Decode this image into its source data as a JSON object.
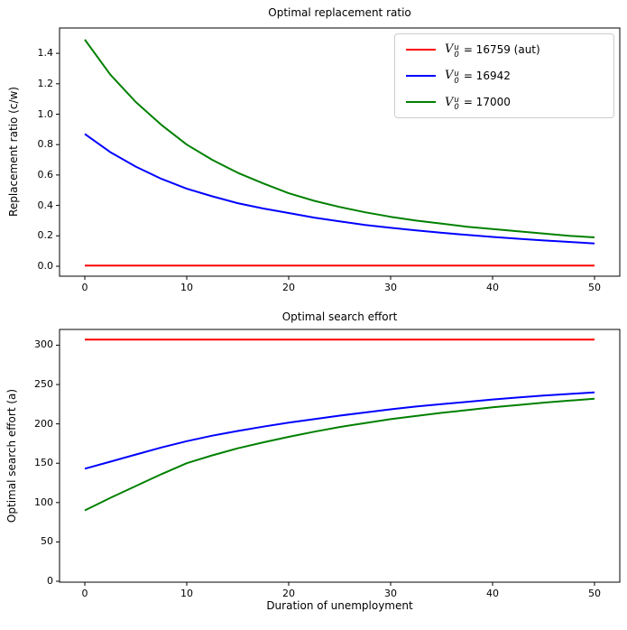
{
  "figure_background": "#ffffff",
  "axis_color": "#000000",
  "legend": {
    "entries": [
      {
        "color": "#ff0000",
        "var": "V",
        "sup": "u",
        "sub": "0",
        "rest": "= 16759 (aut)"
      },
      {
        "color": "#0000ff",
        "var": "V",
        "sup": "u",
        "sub": "0",
        "rest": "= 16942"
      },
      {
        "color": "#008000",
        "var": "V",
        "sup": "u",
        "sub": "0",
        "rest": "= 17000"
      }
    ]
  },
  "chart_data": [
    {
      "type": "line",
      "title": "Optimal replacement ratio",
      "xlabel": "",
      "ylabel": "Replacement ratio (c/w)",
      "grid": false,
      "legend_position": "upper right",
      "xlim": [
        -2.48,
        52.48
      ],
      "ylim": [
        -0.0653,
        1.5668
      ],
      "xticks": [
        0,
        10,
        20,
        30,
        40,
        50
      ],
      "xtick_labels": [
        "0",
        "10",
        "20",
        "30",
        "40",
        "50"
      ],
      "yticks": [
        0.0,
        0.2,
        0.4,
        0.6,
        0.8,
        1.0,
        1.2,
        1.4
      ],
      "ytick_labels": [
        "0.0",
        "0.2",
        "0.4",
        "0.6",
        "0.8",
        "1.0",
        "1.2",
        "1.4"
      ],
      "x": [
        0,
        2.5,
        5,
        7.5,
        10,
        12.5,
        15,
        17.5,
        20,
        22.5,
        25,
        27.5,
        30,
        32.5,
        35,
        37.5,
        40,
        42.5,
        45,
        47.5,
        50
      ],
      "series": [
        {
          "name": "V_0^u = 16759 (aut)",
          "color": "#ff0000",
          "values": [
            0.005,
            0.005,
            0.005,
            0.005,
            0.005,
            0.005,
            0.005,
            0.005,
            0.005,
            0.005,
            0.005,
            0.005,
            0.005,
            0.005,
            0.005,
            0.005,
            0.005,
            0.005,
            0.005,
            0.005,
            0.005
          ]
        },
        {
          "name": "V_0^u = 16942",
          "color": "#0000ff",
          "values": [
            0.87,
            0.75,
            0.655,
            0.575,
            0.51,
            0.46,
            0.415,
            0.38,
            0.35,
            0.32,
            0.295,
            0.272,
            0.253,
            0.236,
            0.22,
            0.206,
            0.193,
            0.181,
            0.17,
            0.16,
            0.15
          ]
        },
        {
          "name": "V_0^u = 17000",
          "color": "#008000",
          "values": [
            1.49,
            1.26,
            1.08,
            0.93,
            0.8,
            0.7,
            0.615,
            0.545,
            0.48,
            0.43,
            0.39,
            0.355,
            0.325,
            0.3,
            0.28,
            0.26,
            0.245,
            0.23,
            0.215,
            0.2,
            0.19
          ]
        }
      ]
    },
    {
      "type": "line",
      "title": "Optimal search effort",
      "xlabel": "Duration of unemployment",
      "ylabel": "Optimal search effort (a)",
      "grid": false,
      "legend_position": "none",
      "xlim": [
        -2.48,
        52.48
      ],
      "ylim": [
        -1.15,
        320
      ],
      "xticks": [
        0,
        10,
        20,
        30,
        40,
        50
      ],
      "xtick_labels": [
        "0",
        "10",
        "20",
        "30",
        "40",
        "50"
      ],
      "yticks": [
        0,
        50,
        100,
        150,
        200,
        250,
        300
      ],
      "ytick_labels": [
        "0",
        "50",
        "100",
        "150",
        "200",
        "250",
        "300"
      ],
      "x": [
        0,
        2.5,
        5,
        7.5,
        10,
        12.5,
        15,
        17.5,
        20,
        22.5,
        25,
        27.5,
        30,
        32.5,
        35,
        37.5,
        40,
        42.5,
        45,
        47.5,
        50
      ],
      "series": [
        {
          "name": "V_0^u = 16759 (aut)",
          "color": "#ff0000",
          "values": [
            307,
            307,
            307,
            307,
            307,
            307,
            307,
            307,
            307,
            307,
            307,
            307,
            307,
            307,
            307,
            307,
            307,
            307,
            307,
            307,
            307
          ]
        },
        {
          "name": "V_0^u = 16942",
          "color": "#0000ff",
          "values": [
            143,
            152,
            161,
            170,
            178,
            185,
            191,
            196.5,
            201.5,
            206,
            210.5,
            214.5,
            218.5,
            222,
            225,
            228,
            231,
            233.5,
            236,
            238,
            240
          ]
        },
        {
          "name": "V_0^u = 17000",
          "color": "#008000",
          "values": [
            90,
            106,
            121,
            136,
            150,
            160,
            169,
            176.5,
            183.5,
            190,
            196,
            201,
            206,
            210,
            214,
            217.5,
            221,
            224,
            227,
            229.5,
            232
          ]
        }
      ]
    }
  ]
}
